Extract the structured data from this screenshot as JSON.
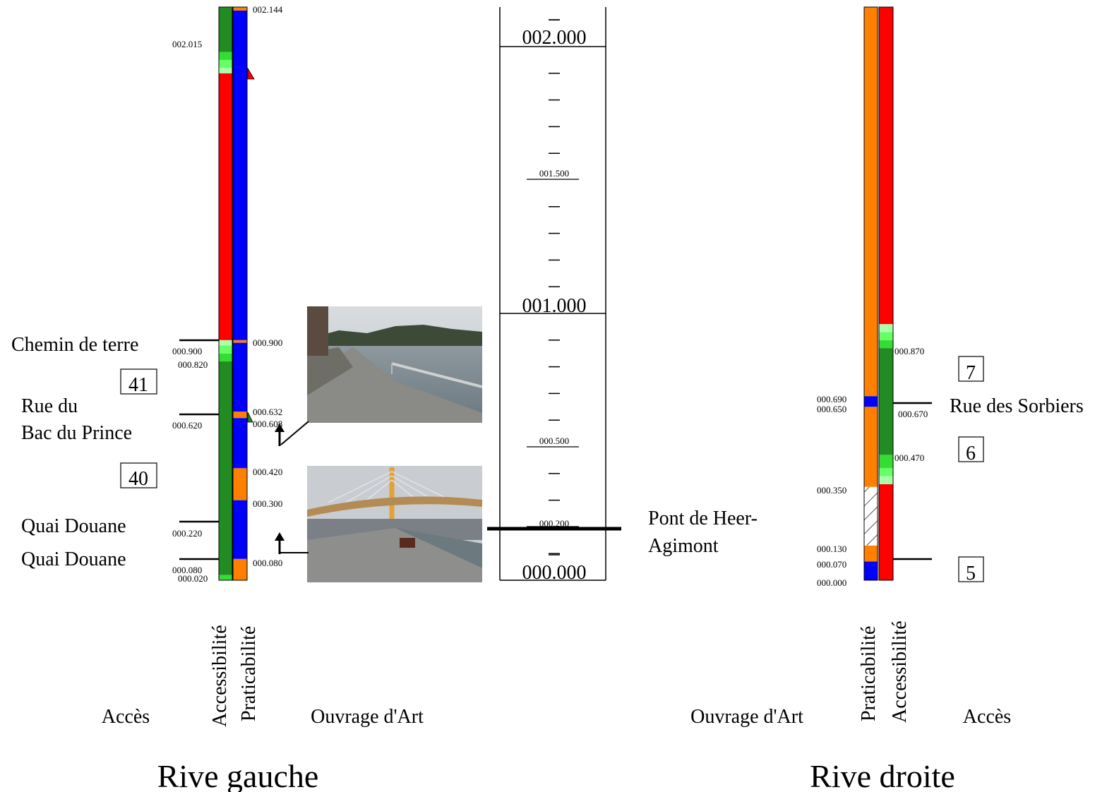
{
  "colors": {
    "red": "#ff0000",
    "blue": "#0000ff",
    "orange": "#ff8000",
    "green": "#228b22",
    "green_light": "#33dd33",
    "green_lighter": "#66ff66",
    "green_pale": "#aaffaa",
    "hatch_stroke": "#555555"
  },
  "headers": {
    "left_acces": "Accès",
    "left_accessibilite": "Accessibilité",
    "left_praticabilite": "Praticabilité",
    "left_ouvrage": "Ouvrage d'Art",
    "right_ouvrage": "Ouvrage d'Art",
    "right_praticabilite": "Praticabilité",
    "right_accessibilite": "Accessibilité",
    "right_acces": "Accès"
  },
  "titles": {
    "left": "Rive gauche",
    "right": "Rive droite"
  },
  "scale": {
    "major": [
      "002.000",
      "001.000",
      "000.000"
    ],
    "minor": [
      "001.500",
      "000.500",
      "000.200"
    ]
  },
  "left": {
    "access_labels": [
      {
        "text": "Chemin de terre",
        "km": "000.900"
      },
      {
        "text": "Rue du",
        "km": "000.620"
      },
      {
        "text": "Bac du Prince",
        "km": "000.620"
      },
      {
        "text": "Quai Douane",
        "km": "000.220"
      },
      {
        "text": "Quai Douane",
        "km": "000.080"
      }
    ],
    "boxes": [
      "41",
      "40"
    ],
    "acc_kms": [
      "002.015",
      "000.900",
      "000.820",
      "000.620",
      "000.220",
      "000.080",
      "000.020"
    ],
    "prat_kms": [
      "002.144",
      "000.900",
      "000.632",
      "000.608",
      "000.420",
      "000.300",
      "000.080"
    ],
    "acc_segments": [
      {
        "from": 0.0,
        "to": 0.02,
        "color": "green_light"
      },
      {
        "from": 0.02,
        "to": 0.82,
        "color": "green"
      },
      {
        "from": 0.82,
        "to": 0.85,
        "color": "green_light"
      },
      {
        "from": 0.85,
        "to": 0.88,
        "color": "green_lighter"
      },
      {
        "from": 0.88,
        "to": 0.9,
        "color": "green_pale"
      },
      {
        "from": 0.9,
        "to": 1.9,
        "color": "red"
      },
      {
        "from": 1.9,
        "to": 1.92,
        "color": "green_pale"
      },
      {
        "from": 1.92,
        "to": 1.95,
        "color": "green_lighter"
      },
      {
        "from": 1.95,
        "to": 1.98,
        "color": "green_light"
      },
      {
        "from": 1.98,
        "to": 2.15,
        "color": "green"
      }
    ],
    "prat_segments": [
      {
        "from": 0.0,
        "to": 0.08,
        "color": "orange"
      },
      {
        "from": 0.08,
        "to": 0.3,
        "color": "blue"
      },
      {
        "from": 0.3,
        "to": 0.42,
        "color": "orange"
      },
      {
        "from": 0.42,
        "to": 0.608,
        "color": "blue"
      },
      {
        "from": 0.608,
        "to": 0.632,
        "color": "orange"
      },
      {
        "from": 0.632,
        "to": 0.89,
        "color": "blue"
      },
      {
        "from": 0.89,
        "to": 0.9,
        "color": "orange"
      },
      {
        "from": 0.9,
        "to": 2.135,
        "color": "blue"
      },
      {
        "from": 2.135,
        "to": 2.15,
        "color": "orange"
      }
    ]
  },
  "right": {
    "access_labels": [
      {
        "text": "Rue des Sorbiers",
        "km": "000.670"
      }
    ],
    "boxes": [
      "7",
      "6",
      "5"
    ],
    "prat_kms": [
      "000.690",
      "000.650",
      "000.350",
      "000.130",
      "000.070",
      "000.000"
    ],
    "acc_kms": [
      "000.870",
      "000.670",
      "000.470"
    ],
    "prat_segments": [
      {
        "from": 0.0,
        "to": 0.07,
        "color": "blue"
      },
      {
        "from": 0.07,
        "to": 0.13,
        "color": "orange"
      },
      {
        "from": 0.13,
        "to": 0.35,
        "color": "hatch"
      },
      {
        "from": 0.35,
        "to": 0.65,
        "color": "orange"
      },
      {
        "from": 0.65,
        "to": 0.69,
        "color": "blue"
      },
      {
        "from": 0.69,
        "to": 2.15,
        "color": "orange"
      }
    ],
    "acc_segments": [
      {
        "from": 0.0,
        "to": 0.36,
        "color": "red"
      },
      {
        "from": 0.36,
        "to": 0.39,
        "color": "green_pale"
      },
      {
        "from": 0.39,
        "to": 0.42,
        "color": "green_lighter"
      },
      {
        "from": 0.42,
        "to": 0.47,
        "color": "green_light"
      },
      {
        "from": 0.47,
        "to": 0.87,
        "color": "green"
      },
      {
        "from": 0.87,
        "to": 0.9,
        "color": "green_light"
      },
      {
        "from": 0.9,
        "to": 0.93,
        "color": "green_lighter"
      },
      {
        "from": 0.93,
        "to": 0.96,
        "color": "green_pale"
      },
      {
        "from": 0.96,
        "to": 2.15,
        "color": "red"
      }
    ]
  },
  "structures": {
    "bridge": "Pont de Heer-",
    "bridge_line2": "Agimont"
  }
}
